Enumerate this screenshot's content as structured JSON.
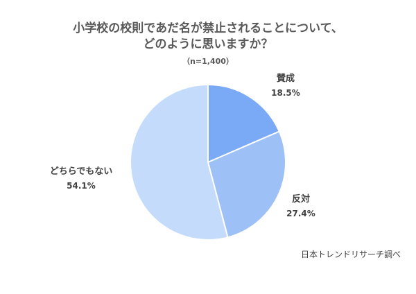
{
  "chart_data": {
    "type": "pie",
    "title_line1": "小学校の校則であだ名が禁止されることについて、",
    "title_line2": "どのように思いますか？",
    "subtitle": "（n=1,400）",
    "start_angle_deg": 0,
    "direction": "clockwise",
    "slices": [
      {
        "label": "賛成",
        "value": 18.5,
        "value_label": "18.5%",
        "color": "#7aaaf5"
      },
      {
        "label": "反対",
        "value": 27.4,
        "value_label": "27.4%",
        "color": "#9dc1f7"
      },
      {
        "label": "どちらでもない",
        "value": 54.1,
        "value_label": "54.1%",
        "color": "#c5dbfb"
      }
    ],
    "source": "日本トレンドリサーチ調べ"
  }
}
